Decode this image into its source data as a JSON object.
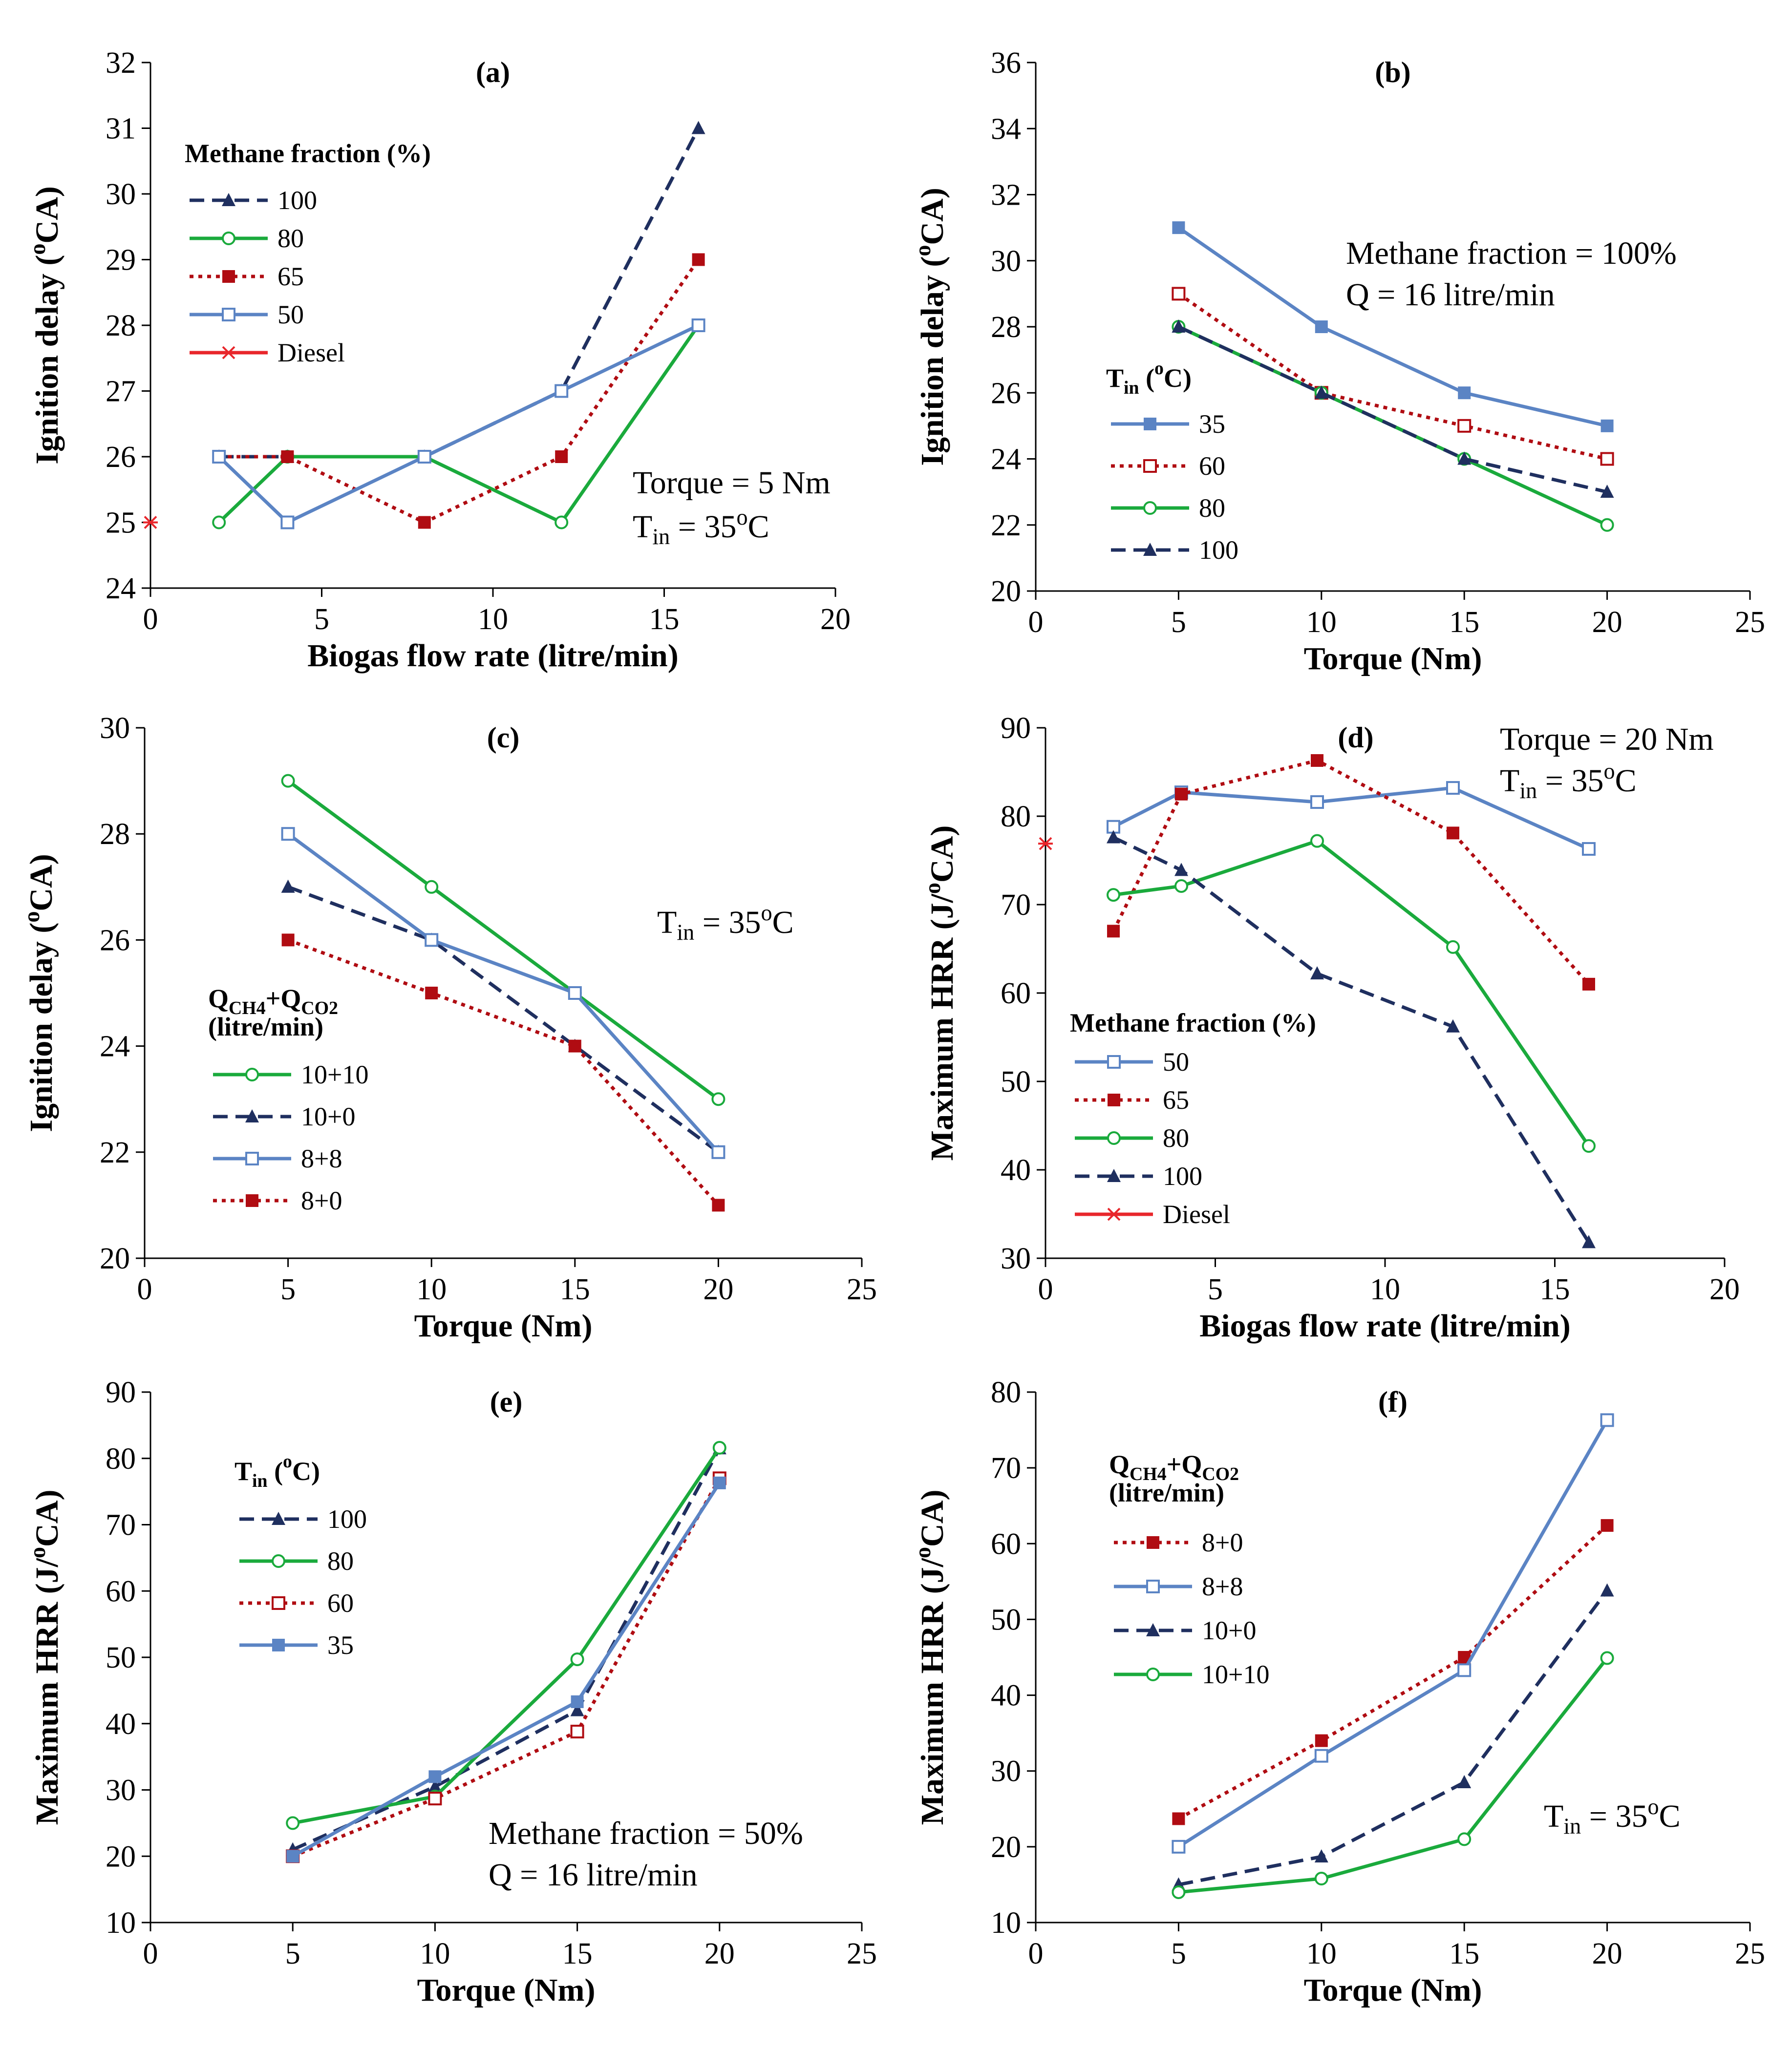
{
  "figure": {
    "panels": [
      "a",
      "b",
      "c",
      "d",
      "e",
      "f"
    ]
  },
  "colors": {
    "navy": "#1f2f5f",
    "green": "#1aaa3c",
    "red": "#b00c12",
    "blue": "#5b84c4",
    "diesel": "#e8262b",
    "axis": "#000000"
  },
  "chart_data": [
    {
      "id": "a",
      "type": "line",
      "tag": "(a)",
      "xlabel": "Biogas flow rate (litre/min)",
      "ylabel": "Ignition delay (oCA)",
      "xlim": [
        0,
        20
      ],
      "ylim": [
        24,
        32
      ],
      "xticks": [
        0,
        5,
        10,
        15,
        20
      ],
      "yticks": [
        24,
        25,
        26,
        27,
        28,
        29,
        30,
        31,
        32
      ],
      "legend_title": [
        "Methane fraction (%)"
      ],
      "legend_position": "top-left",
      "annotations": [
        {
          "text": "Torque = 5 Nm",
          "position": "middle-right"
        },
        {
          "text": "Tin = 35oC",
          "position": "middle-right"
        }
      ],
      "series": [
        {
          "name": "100",
          "color": "navy",
          "dash": "dashed",
          "marker": "triangle",
          "x": [
            2,
            4,
            8,
            12,
            16
          ],
          "y": [
            26,
            26,
            26,
            27,
            31
          ]
        },
        {
          "name": "80",
          "color": "green",
          "dash": "solid",
          "marker": "circle-open",
          "x": [
            2,
            4,
            8,
            12,
            16
          ],
          "y": [
            25,
            26,
            26,
            25,
            28
          ]
        },
        {
          "name": "65",
          "color": "red",
          "dash": "dotted",
          "marker": "square-filled",
          "x": [
            2,
            4,
            8,
            12,
            16
          ],
          "y": [
            26,
            26,
            25,
            26,
            29
          ]
        },
        {
          "name": "50",
          "color": "blue",
          "dash": "solid",
          "marker": "square-open",
          "x": [
            2,
            4,
            8,
            12,
            16
          ],
          "y": [
            26,
            25,
            26,
            27,
            28
          ]
        },
        {
          "name": "Diesel",
          "color": "diesel",
          "dash": "solid",
          "marker": "star",
          "x": [
            0
          ],
          "y": [
            25
          ]
        }
      ]
    },
    {
      "id": "b",
      "type": "line",
      "tag": "(b)",
      "xlabel": "Torque (Nm)",
      "ylabel": "Ignition delay (oCA)",
      "xlim": [
        0,
        25
      ],
      "ylim": [
        20,
        36
      ],
      "xticks": [
        0,
        5,
        10,
        15,
        20,
        25
      ],
      "yticks": [
        20,
        22,
        24,
        26,
        28,
        30,
        32,
        34,
        36
      ],
      "legend_title": [
        "Tin (oC)"
      ],
      "legend_position": "bottom-left",
      "annotations": [
        {
          "text": "Methane fraction = 100%",
          "position": "top-right"
        },
        {
          "text": "Q = 16 litre/min",
          "position": "top-right"
        }
      ],
      "series": [
        {
          "name": "35",
          "color": "blue",
          "dash": "solid",
          "marker": "square-filled",
          "x": [
            5,
            10,
            15,
            20
          ],
          "y": [
            31,
            28,
            26,
            25
          ]
        },
        {
          "name": "60",
          "color": "red",
          "dash": "dotted",
          "marker": "square-open",
          "x": [
            5,
            10,
            15,
            20
          ],
          "y": [
            29,
            26,
            25,
            24
          ]
        },
        {
          "name": "80",
          "color": "green",
          "dash": "solid",
          "marker": "circle-open",
          "x": [
            5,
            10,
            15,
            20
          ],
          "y": [
            28,
            26,
            24,
            22
          ]
        },
        {
          "name": "100",
          "color": "navy",
          "dash": "dashed",
          "marker": "triangle",
          "x": [
            5,
            10,
            15,
            20
          ],
          "y": [
            28,
            26,
            24,
            23
          ]
        }
      ]
    },
    {
      "id": "c",
      "type": "line",
      "tag": "(c)",
      "xlabel": "Torque (Nm)",
      "ylabel": "Ignition delay (oCA)",
      "xlim": [
        0,
        25
      ],
      "ylim": [
        20,
        30
      ],
      "xticks": [
        0,
        5,
        10,
        15,
        20,
        25
      ],
      "yticks": [
        20,
        22,
        24,
        26,
        28,
        30
      ],
      "legend_title": [
        "QCH4+QCO2",
        "(litre/min)"
      ],
      "legend_position": "bottom-left",
      "annotations": [
        {
          "text": "Tin = 35oC",
          "position": "middle-right"
        }
      ],
      "series": [
        {
          "name": "10+10",
          "color": "green",
          "dash": "solid",
          "marker": "circle-open",
          "x": [
            5,
            10,
            15,
            20
          ],
          "y": [
            29,
            27,
            25,
            23
          ]
        },
        {
          "name": "10+0",
          "color": "navy",
          "dash": "dashed",
          "marker": "triangle",
          "x": [
            5,
            10,
            15,
            20
          ],
          "y": [
            27,
            26,
            24,
            22
          ]
        },
        {
          "name": "8+8",
          "color": "blue",
          "dash": "solid",
          "marker": "square-open",
          "x": [
            5,
            10,
            15,
            20
          ],
          "y": [
            28,
            26,
            25,
            22
          ]
        },
        {
          "name": "8+0",
          "color": "red",
          "dash": "dotted",
          "marker": "square-filled",
          "x": [
            5,
            10,
            15,
            20
          ],
          "y": [
            26,
            25,
            24,
            21
          ]
        }
      ]
    },
    {
      "id": "d",
      "type": "line",
      "tag": "(d)",
      "xlabel": "Biogas flow rate (litre/min)",
      "ylabel": "Maximum HRR (J/oCA)",
      "xlim": [
        0,
        20
      ],
      "ylim": [
        30,
        90
      ],
      "xticks": [
        0,
        5,
        10,
        15,
        20
      ],
      "yticks": [
        30,
        40,
        50,
        60,
        70,
        80,
        90
      ],
      "legend_title": [
        "Methane fraction (%)"
      ],
      "legend_position": "bottom-left",
      "annotations": [
        {
          "text": "Torque = 20 Nm",
          "position": "top-right"
        },
        {
          "text": "Tin = 35oC",
          "position": "top-right"
        }
      ],
      "series": [
        {
          "name": "50",
          "color": "blue",
          "dash": "solid",
          "marker": "square-open",
          "x": [
            2,
            4,
            8,
            12,
            16
          ],
          "y": [
            78.8,
            82.7,
            81.6,
            83.2,
            76.3
          ]
        },
        {
          "name": "65",
          "color": "red",
          "dash": "dotted",
          "marker": "square-filled",
          "x": [
            2,
            4,
            8,
            12,
            16
          ],
          "y": [
            67,
            82.5,
            86.3,
            78.1,
            61
          ]
        },
        {
          "name": "80",
          "color": "green",
          "dash": "solid",
          "marker": "circle-open",
          "x": [
            2,
            4,
            8,
            12,
            16
          ],
          "y": [
            71.1,
            72.1,
            77.2,
            65.2,
            42.7
          ]
        },
        {
          "name": "100",
          "color": "navy",
          "dash": "dashed",
          "marker": "triangle",
          "x": [
            2,
            4,
            8,
            12,
            16
          ],
          "y": [
            77.6,
            73.9,
            62.2,
            56.2,
            31.8
          ]
        },
        {
          "name": "Diesel",
          "color": "diesel",
          "dash": "solid",
          "marker": "star",
          "x": [
            0
          ],
          "y": [
            76.9
          ]
        }
      ]
    },
    {
      "id": "e",
      "type": "line",
      "tag": "(e)",
      "xlabel": "Torque (Nm)",
      "ylabel": "Maximum HRR (J/oCA)",
      "xlim": [
        0,
        25
      ],
      "ylim": [
        10,
        90
      ],
      "xticks": [
        0,
        5,
        10,
        15,
        20,
        25
      ],
      "yticks": [
        10,
        20,
        30,
        40,
        50,
        60,
        70,
        80,
        90
      ],
      "legend_title": [
        "Tin (oC)"
      ],
      "legend_position": "top-left",
      "annotations": [
        {
          "text": "Methane fraction = 50%",
          "position": "bottom-right"
        },
        {
          "text": "Q = 16 litre/min",
          "position": "bottom-right"
        }
      ],
      "series": [
        {
          "name": "100",
          "color": "navy",
          "dash": "dashed",
          "marker": "triangle",
          "x": [
            5,
            10,
            15,
            20
          ],
          "y": [
            21,
            30.5,
            42,
            81.5
          ]
        },
        {
          "name": "80",
          "color": "green",
          "dash": "solid",
          "marker": "circle-open",
          "x": [
            5,
            10,
            15,
            20
          ],
          "y": [
            25,
            29,
            49.7,
            81.6
          ]
        },
        {
          "name": "60",
          "color": "red",
          "dash": "dotted",
          "marker": "square-open",
          "x": [
            5,
            10,
            15,
            20
          ],
          "y": [
            20,
            28.7,
            38.8,
            77
          ]
        },
        {
          "name": "35",
          "color": "blue",
          "dash": "solid",
          "marker": "square-filled",
          "x": [
            5,
            10,
            15,
            20
          ],
          "y": [
            20,
            32,
            43.3,
            76.3
          ]
        }
      ]
    },
    {
      "id": "f",
      "type": "line",
      "tag": "(f)",
      "xlabel": "Torque (Nm)",
      "ylabel": "Maximum HRR (J/oCA)",
      "xlim": [
        0,
        25
      ],
      "ylim": [
        10,
        80
      ],
      "xticks": [
        0,
        5,
        10,
        15,
        20,
        25
      ],
      "yticks": [
        10,
        20,
        30,
        40,
        50,
        60,
        70,
        80
      ],
      "legend_title": [
        "QCH4+QCO2",
        "(litre/min)"
      ],
      "legend_position": "top-left",
      "annotations": [
        {
          "text": "Tin = 35oC",
          "position": "bottom-right"
        }
      ],
      "series": [
        {
          "name": "8+0",
          "color": "red",
          "dash": "dotted",
          "marker": "square-filled",
          "x": [
            5,
            10,
            15,
            20
          ],
          "y": [
            23.7,
            34,
            45,
            62.4
          ]
        },
        {
          "name": "8+8",
          "color": "blue",
          "dash": "solid",
          "marker": "square-open",
          "x": [
            5,
            10,
            15,
            20
          ],
          "y": [
            20,
            32,
            43.3,
            76.3
          ]
        },
        {
          "name": "10+0",
          "color": "navy",
          "dash": "dashed",
          "marker": "triangle",
          "x": [
            5,
            10,
            15,
            20
          ],
          "y": [
            15,
            18.7,
            28.5,
            53.8
          ]
        },
        {
          "name": "10+10",
          "color": "green",
          "dash": "solid",
          "marker": "circle-open",
          "x": [
            5,
            10,
            15,
            20
          ],
          "y": [
            14,
            15.8,
            21,
            44.9
          ]
        }
      ]
    }
  ]
}
